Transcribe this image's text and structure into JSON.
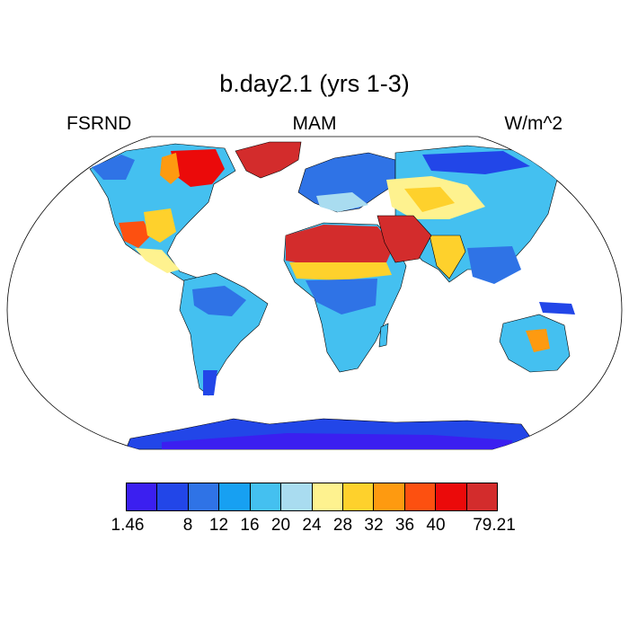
{
  "title": "b.day2.1 (yrs 1-3)",
  "header": {
    "left": "FSRND",
    "center": "MAM",
    "right": "W/m^2"
  },
  "colorbar": {
    "colors": [
      "#3b1ff0",
      "#2246e8",
      "#2f73e6",
      "#17a0f2",
      "#44c0f0",
      "#a9dcf0",
      "#fef28f",
      "#fed12c",
      "#fe9a10",
      "#fd5010",
      "#eb0a0a",
      "#d32c2c"
    ],
    "labels": [
      "1.46",
      "8",
      "12",
      "16",
      "20",
      "24",
      "28",
      "32",
      "36",
      "40",
      "79.21"
    ]
  },
  "map": {
    "projection": "robinson",
    "ocean": "white",
    "regions": [
      {
        "name": "greenland",
        "level": 11
      },
      {
        "name": "sahara",
        "level": 11
      },
      {
        "name": "arabia",
        "level": 11
      },
      {
        "name": "canada-shield",
        "level": 10
      },
      {
        "name": "us-southwest",
        "level": 9
      },
      {
        "name": "central-asia",
        "level": 7
      },
      {
        "name": "india",
        "level": 7
      },
      {
        "name": "sahel",
        "level": 7
      },
      {
        "name": "mexico",
        "level": 7
      },
      {
        "name": "australia-interior",
        "level": 8
      },
      {
        "name": "amazon",
        "level": 3
      },
      {
        "name": "central-africa",
        "level": 3
      },
      {
        "name": "siberia",
        "level": 3
      },
      {
        "name": "antarctica",
        "level": 1
      }
    ]
  }
}
